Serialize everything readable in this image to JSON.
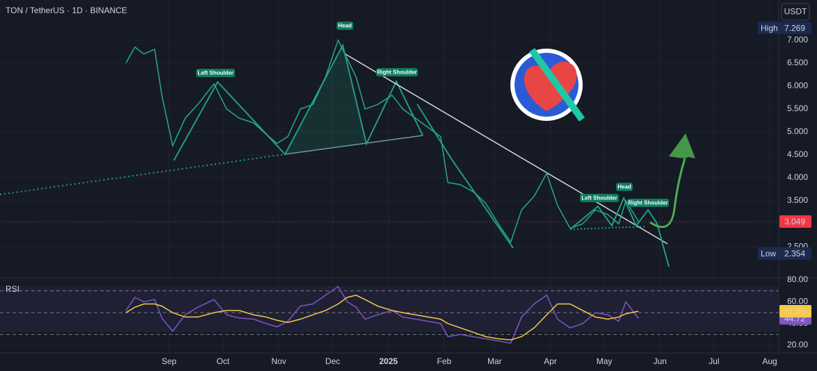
{
  "header": {
    "title": "TON / TetherUS · 1D · BINANCE",
    "currency": "USDT"
  },
  "chart_data": [
    {
      "type": "line",
      "color": "#26a69a",
      "x": [
        "2024-08-08",
        "2024-08-13",
        "2024-08-18",
        "2024-08-24",
        "2024-08-28",
        "2024-09-03",
        "2024-09-10",
        "2024-09-17",
        "2024-09-26",
        "2024-10-03",
        "2024-10-10",
        "2024-10-18",
        "2024-10-25",
        "2024-10-31",
        "2024-11-06",
        "2024-11-13",
        "2024-11-20",
        "2024-11-27",
        "2024-12-04",
        "2024-12-09",
        "2024-12-14",
        "2024-12-19",
        "2024-12-26",
        "2025-01-03",
        "2025-01-09",
        "2025-01-16",
        "2025-01-23",
        "2025-01-30",
        "2025-02-03",
        "2025-02-10",
        "2025-02-17",
        "2025-02-24",
        "2025-03-03",
        "2025-03-10",
        "2025-03-16",
        "2025-03-23",
        "2025-03-30",
        "2025-04-05",
        "2025-04-12",
        "2025-04-19",
        "2025-04-26",
        "2025-05-03",
        "2025-05-09",
        "2025-05-13",
        "2025-05-20"
      ],
      "values": [
        6.5,
        6.85,
        6.7,
        6.8,
        5.8,
        4.7,
        5.3,
        5.6,
        6.05,
        5.5,
        5.3,
        5.2,
        4.95,
        4.75,
        4.9,
        5.5,
        5.6,
        6.2,
        7.0,
        6.6,
        6.2,
        5.5,
        5.6,
        5.8,
        5.5,
        5.3,
        5.1,
        4.9,
        3.9,
        3.85,
        3.7,
        3.45,
        3.0,
        2.6,
        3.3,
        3.6,
        4.1,
        3.4,
        2.9,
        3.0,
        3.3,
        3.2,
        3.0,
        3.5,
        3.049
      ],
      "xlim": [
        "2024-05-30",
        "2025-08-06"
      ],
      "xticks": [
        {
          "value": "2024-09-01",
          "label": "Sep"
        },
        {
          "value": "2024-10-01",
          "label": "Oct"
        },
        {
          "value": "2024-11-01",
          "label": "Nov"
        },
        {
          "value": "2024-12-01",
          "label": "Dec"
        },
        {
          "value": "2025-01-01",
          "label": "2025"
        },
        {
          "value": "2025-02-01",
          "label": "Feb"
        },
        {
          "value": "2025-03-01",
          "label": "Mar"
        },
        {
          "value": "2025-04-01",
          "label": "Apr"
        },
        {
          "value": "2025-05-01",
          "label": "May"
        },
        {
          "value": "2025-06-01",
          "label": "Jun"
        },
        {
          "value": "2025-07-01",
          "label": "Jul"
        },
        {
          "value": "2025-08-01",
          "label": "Aug"
        }
      ],
      "ylim": [
        1.82,
        7.876
      ],
      "yticks": [
        {
          "value": 2.5,
          "label": "2.500"
        },
        {
          "value": 3,
          "label": "3.000"
        },
        {
          "value": 3.5,
          "label": "3.500"
        },
        {
          "value": 4,
          "label": "4.000"
        },
        {
          "value": 4.5,
          "label": "4.500"
        },
        {
          "value": 5,
          "label": "5.000"
        },
        {
          "value": 5.5,
          "label": "5.500"
        },
        {
          "value": 6,
          "label": "6.000"
        },
        {
          "value": 6.5,
          "label": "6.500"
        },
        {
          "value": 7,
          "label": "7.000"
        }
      ],
      "grid": true,
      "high": {
        "label": "High",
        "value": 7.269
      },
      "low": {
        "label": "Low",
        "value": 2.354
      },
      "last": {
        "value": 3.049,
        "color": "#f23645"
      },
      "annotations": [
        "Left Shoulder",
        "Head",
        "Right Shoulder",
        "Left Shoulder",
        "Head",
        "Right Shoulder"
      ]
    },
    {
      "type": "line",
      "title": "RSI",
      "x": [
        "2024-08-08",
        "2024-08-13",
        "2024-08-18",
        "2024-08-24",
        "2024-08-28",
        "2024-09-03",
        "2024-09-10",
        "2024-09-17",
        "2024-09-26",
        "2024-10-03",
        "2024-10-10",
        "2024-10-18",
        "2024-10-25",
        "2024-10-31",
        "2024-11-06",
        "2024-11-13",
        "2024-11-20",
        "2024-11-27",
        "2024-12-04",
        "2024-12-09",
        "2024-12-14",
        "2024-12-19",
        "2024-12-26",
        "2025-01-03",
        "2025-01-09",
        "2025-01-16",
        "2025-01-23",
        "2025-01-30",
        "2025-02-03",
        "2025-02-10",
        "2025-02-17",
        "2025-02-24",
        "2025-03-03",
        "2025-03-10",
        "2025-03-16",
        "2025-03-23",
        "2025-03-30",
        "2025-04-05",
        "2025-04-12",
        "2025-04-19",
        "2025-04-26",
        "2025-05-03",
        "2025-05-09",
        "2025-05-13",
        "2025-05-20"
      ],
      "series": [
        {
          "color": "#7e57c2",
          "values": [
            52,
            64,
            60,
            62,
            45,
            33,
            48,
            55,
            62,
            48,
            45,
            44,
            40,
            37,
            42,
            56,
            58,
            66,
            74,
            60,
            55,
            44,
            48,
            52,
            46,
            44,
            42,
            40,
            28,
            30,
            28,
            26,
            24,
            22,
            46,
            58,
            66,
            44,
            36,
            40,
            50,
            48,
            42,
            60,
            44.72
          ]
        },
        {
          "color": "#f7c948",
          "values": [
            50,
            55,
            58,
            58,
            56,
            50,
            46,
            46,
            50,
            52,
            52,
            48,
            46,
            43,
            41,
            44,
            48,
            52,
            58,
            64,
            66,
            62,
            56,
            52,
            50,
            48,
            46,
            44,
            40,
            36,
            32,
            28,
            26,
            25,
            28,
            36,
            48,
            58,
            58,
            52,
            46,
            44,
            46,
            49,
            51.25
          ]
        }
      ],
      "ylim": [
        13,
        81.9
      ],
      "yticks": [
        {
          "value": 20,
          "label": "20.00"
        },
        {
          "value": 40,
          "label": "40.00"
        },
        {
          "value": 60,
          "label": "60.00"
        },
        {
          "value": 80,
          "label": "80.00"
        }
      ],
      "levels": [
        70,
        50,
        30
      ]
    }
  ]
}
